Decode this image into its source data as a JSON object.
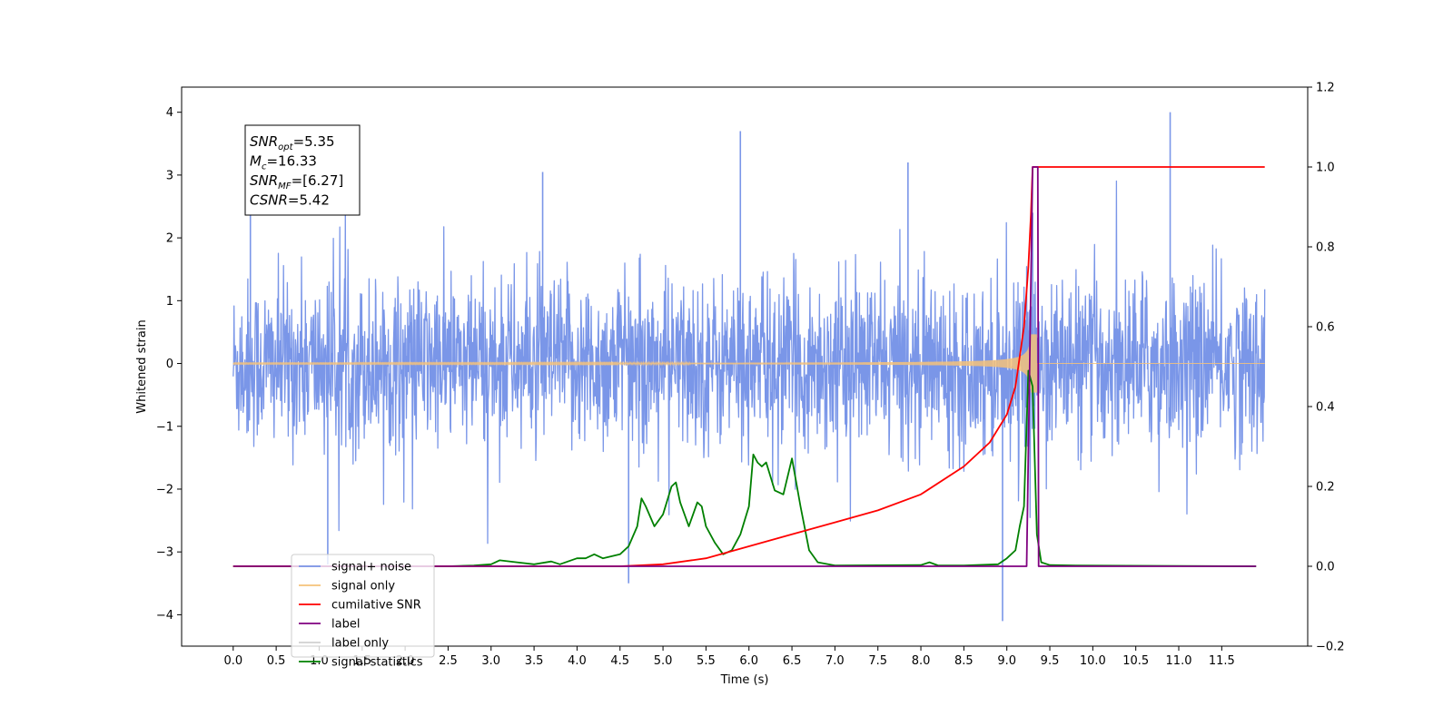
{
  "chart_data": {
    "type": "line",
    "title": "",
    "xlabel": "Time (s)",
    "ylabel": "Whitened strain",
    "y2label": "",
    "xlim": [
      -0.6,
      12.5
    ],
    "ylim": [
      -4.5,
      4.4
    ],
    "y2lim": [
      -0.2,
      1.2
    ],
    "x_ticks": [
      0.0,
      0.5,
      1.0,
      1.5,
      2.0,
      2.5,
      3.0,
      3.5,
      4.0,
      4.5,
      5.0,
      5.5,
      6.0,
      6.5,
      7.0,
      7.5,
      8.0,
      8.5,
      9.0,
      9.5,
      10.0,
      10.5,
      11.0,
      11.5
    ],
    "x_tick_labels": [
      "0.0",
      "0.5",
      "1.0",
      "1.5",
      "2.0",
      "2.5",
      "3.0",
      "3.5",
      "4.0",
      "4.5",
      "5.0",
      "5.5",
      "6.0",
      "6.5",
      "7.0",
      "7.5",
      "8.0",
      "8.5",
      "9.0",
      "9.5",
      "10.0",
      "10.5",
      "11.0",
      "11.5"
    ],
    "y_ticks": [
      -4,
      -3,
      -2,
      -1,
      0,
      1,
      2,
      3,
      4
    ],
    "y_tick_labels": [
      "−4",
      "−3",
      "−2",
      "−1",
      "0",
      "1",
      "2",
      "3",
      "4"
    ],
    "y2_ticks": [
      -0.2,
      0.0,
      0.2,
      0.4,
      0.6,
      0.8,
      1.0,
      1.2
    ],
    "y2_tick_labels": [
      "−0.2",
      "0.0",
      "0.2",
      "0.4",
      "0.6",
      "0.8",
      "1.0",
      "1.2"
    ],
    "legend_position": "lower-left",
    "grid": false,
    "annotation": {
      "lines": [
        {
          "base": "SNR",
          "sub": "opt",
          "value": "=5.35"
        },
        {
          "base": "M",
          "sub": "c",
          "value": "=16.33"
        },
        {
          "base": "SNR",
          "sub": "MF",
          "value": "=[6.27]"
        },
        {
          "base": "CSNR",
          "sub": "",
          "value": "=5.42"
        }
      ]
    },
    "series": [
      {
        "name": "signal+ noise",
        "axis": "left",
        "color": "#7a96e8",
        "kind": "noise",
        "time_range": [
          0.0,
          12.0
        ],
        "noise_std": 0.85,
        "notable_peaks": [
          {
            "x": 0.2,
            "y": 2.75
          },
          {
            "x": 3.6,
            "y": 3.05
          },
          {
            "x": 5.9,
            "y": 3.7
          },
          {
            "x": 7.85,
            "y": 3.2
          },
          {
            "x": 9.3,
            "y": 2.4
          },
          {
            "x": 10.9,
            "y": 4.0
          },
          {
            "x": 4.6,
            "y": -3.5
          },
          {
            "x": 8.95,
            "y": -4.1
          },
          {
            "x": 1.1,
            "y": -3.2
          }
        ]
      },
      {
        "name": "signal only",
        "axis": "left",
        "color": "#f5c27a",
        "kind": "chirp",
        "time_range": [
          0.0,
          12.0
        ],
        "merger_time": 9.3,
        "peak_amplitude": 0.7
      },
      {
        "name": "cumilative SNR",
        "axis": "right",
        "color": "#ff0000",
        "x": [
          0.0,
          4.5,
          5.0,
          5.5,
          6.0,
          6.5,
          7.0,
          7.5,
          8.0,
          8.5,
          8.8,
          9.0,
          9.1,
          9.2,
          9.25,
          9.28,
          9.3,
          9.5,
          10.0,
          11.0,
          12.0
        ],
        "values": [
          0.0,
          0.0,
          0.005,
          0.02,
          0.05,
          0.08,
          0.11,
          0.14,
          0.18,
          0.25,
          0.31,
          0.38,
          0.45,
          0.6,
          0.75,
          0.88,
          1.0,
          1.0,
          1.0,
          1.0,
          1.0
        ]
      },
      {
        "name": "label",
        "axis": "right",
        "color": "#800080",
        "x": [
          0.0,
          9.23,
          9.3,
          9.36,
          9.37,
          11.9
        ],
        "values": [
          0.0,
          0.0,
          1.0,
          1.0,
          0.0,
          0.0
        ]
      },
      {
        "name": "label only",
        "axis": "right",
        "color": "#d0d0d0",
        "x": [],
        "values": []
      },
      {
        "name": "signal statistics",
        "axis": "right",
        "color": "#008000",
        "x": [
          0.0,
          2.5,
          2.8,
          3.0,
          3.1,
          3.3,
          3.5,
          3.7,
          3.8,
          4.0,
          4.1,
          4.2,
          4.3,
          4.5,
          4.6,
          4.7,
          4.75,
          4.8,
          4.9,
          5.0,
          5.1,
          5.15,
          5.2,
          5.3,
          5.4,
          5.45,
          5.5,
          5.6,
          5.7,
          5.8,
          5.9,
          6.0,
          6.05,
          6.1,
          6.15,
          6.2,
          6.3,
          6.4,
          6.5,
          6.6,
          6.7,
          6.8,
          7.0,
          8.0,
          8.1,
          8.2,
          8.5,
          8.9,
          9.0,
          9.1,
          9.15,
          9.2,
          9.25,
          9.3,
          9.35,
          9.4,
          9.5,
          9.8,
          11.9
        ],
        "values": [
          0.0,
          0.0,
          0.002,
          0.005,
          0.015,
          0.01,
          0.005,
          0.012,
          0.005,
          0.02,
          0.02,
          0.03,
          0.02,
          0.03,
          0.05,
          0.1,
          0.17,
          0.15,
          0.1,
          0.13,
          0.2,
          0.21,
          0.16,
          0.1,
          0.16,
          0.15,
          0.1,
          0.06,
          0.03,
          0.04,
          0.08,
          0.15,
          0.28,
          0.26,
          0.25,
          0.26,
          0.19,
          0.18,
          0.27,
          0.15,
          0.04,
          0.01,
          0.002,
          0.003,
          0.01,
          0.002,
          0.002,
          0.005,
          0.02,
          0.04,
          0.1,
          0.15,
          0.49,
          0.45,
          0.08,
          0.01,
          0.003,
          0.002,
          0.0
        ]
      }
    ]
  }
}
